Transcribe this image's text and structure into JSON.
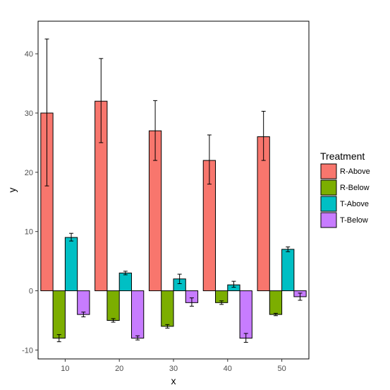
{
  "chart_data": {
    "type": "bar",
    "xlabel": "x",
    "ylabel": "y",
    "categories": [
      "10",
      "20",
      "30",
      "40",
      "50"
    ],
    "ylim": [
      -11.5,
      45.5
    ],
    "yticks": [
      -10,
      0,
      10,
      20,
      30,
      40
    ],
    "legend_title": "Treatment",
    "legend_position": "right",
    "grid": false,
    "series": [
      {
        "name": "R-Above",
        "color": "#F8766D",
        "values": [
          30,
          32,
          27,
          22,
          26
        ],
        "err_low": [
          17.7,
          25.0,
          22.0,
          18.0,
          22.0
        ],
        "err_high": [
          42.5,
          39.2,
          32.1,
          26.3,
          30.3
        ]
      },
      {
        "name": "R-Below",
        "color": "#7CAE00",
        "values": [
          -8,
          -5,
          -6,
          -2,
          -4
        ],
        "err_low": [
          -8.6,
          -5.3,
          -6.3,
          -2.3,
          -4.2
        ],
        "err_high": [
          -7.4,
          -4.7,
          -5.7,
          -1.7,
          -3.8
        ]
      },
      {
        "name": "T-Above",
        "color": "#00BFC4",
        "values": [
          9,
          3,
          2,
          1,
          7
        ],
        "err_low": [
          8.4,
          2.7,
          1.2,
          0.6,
          6.6
        ],
        "err_high": [
          9.7,
          3.3,
          2.8,
          1.6,
          7.4
        ]
      },
      {
        "name": "T-Below",
        "color": "#C77CFF",
        "values": [
          -4,
          -8,
          -2,
          -8,
          -1
        ],
        "err_low": [
          -4.4,
          -8.3,
          -2.6,
          -8.7,
          -1.6
        ],
        "err_high": [
          -3.6,
          -7.6,
          -1.2,
          -7.2,
          -0.4
        ]
      }
    ]
  }
}
